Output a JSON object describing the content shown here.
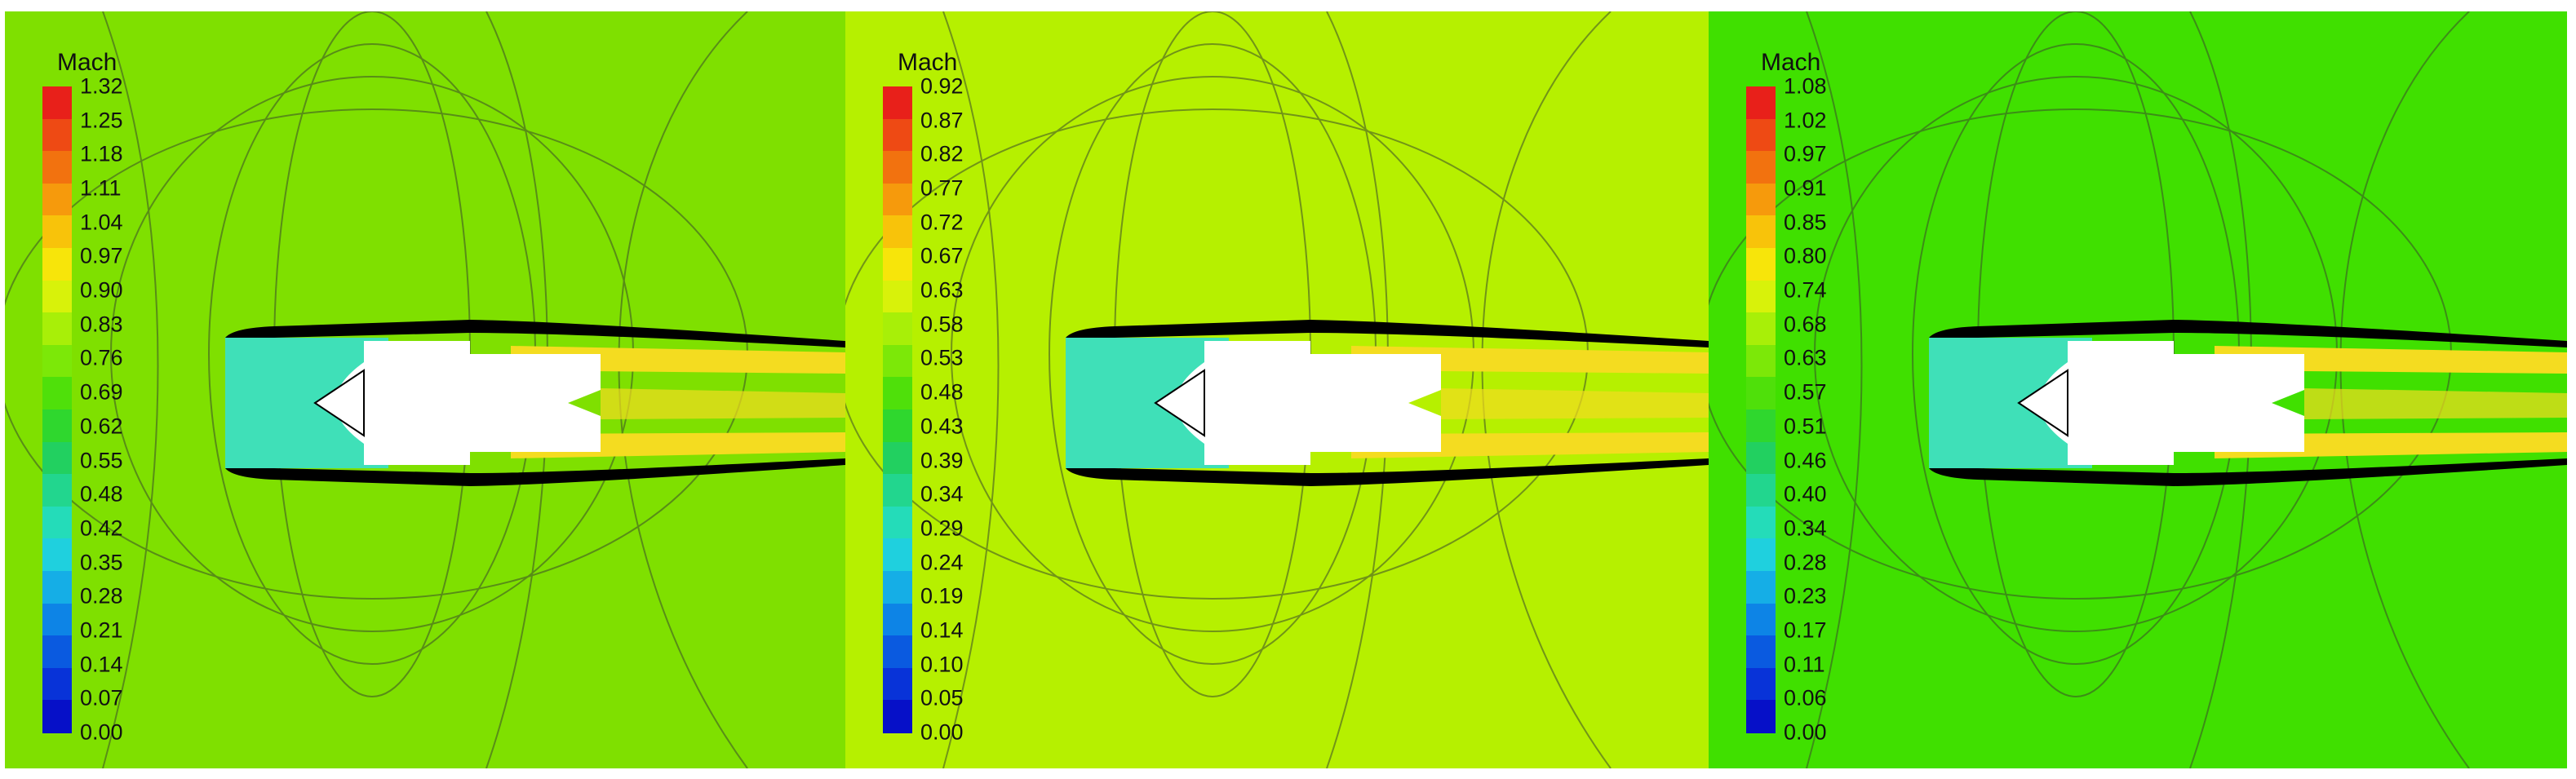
{
  "panels": [
    {
      "id": "left",
      "background": "#7fe000",
      "legend": {
        "title": "Mach",
        "ticks": [
          "1.32",
          "1.25",
          "1.18",
          "1.11",
          "1.04",
          "0.97",
          "0.90",
          "0.83",
          "0.76",
          "0.69",
          "0.62",
          "0.55",
          "0.48",
          "0.42",
          "0.35",
          "0.28",
          "0.21",
          "0.14",
          "0.07",
          "0.00"
        ]
      }
    },
    {
      "id": "middle",
      "background": "#b6f000",
      "legend": {
        "title": "Mach",
        "ticks": [
          "0.92",
          "0.87",
          "0.82",
          "0.77",
          "0.72",
          "0.67",
          "0.63",
          "0.58",
          "0.53",
          "0.48",
          "0.43",
          "0.39",
          "0.34",
          "0.29",
          "0.24",
          "0.19",
          "0.14",
          "0.10",
          "0.05",
          "0.00"
        ]
      }
    },
    {
      "id": "right",
      "background": "#40e000",
      "legend": {
        "title": "Mach",
        "ticks": [
          "1.08",
          "1.02",
          "0.97",
          "0.91",
          "0.85",
          "0.80",
          "0.74",
          "0.68",
          "0.63",
          "0.57",
          "0.51",
          "0.46",
          "0.40",
          "0.34",
          "0.28",
          "0.23",
          "0.17",
          "0.11",
          "0.06",
          "0.00"
        ]
      }
    }
  ],
  "colormap": [
    "#e8201a",
    "#ee4a14",
    "#f2720f",
    "#f69a0c",
    "#f8c30a",
    "#f7e50a",
    "#d8f20a",
    "#a8ef08",
    "#7ce808",
    "#4fe00a",
    "#2fd72e",
    "#22d060",
    "#22d68e",
    "#24dcb9",
    "#1fd0de",
    "#15aee6",
    "#0d84e6",
    "#0a5ae0",
    "#0833d8",
    "#0610c8"
  ],
  "colors": {
    "body_white": "#ffffff",
    "wall_black": "#000000",
    "contour_line": "#3a4a2a",
    "inlet_cyan": "#3fe0b8",
    "jet_yellow": "#f4dc20"
  }
}
